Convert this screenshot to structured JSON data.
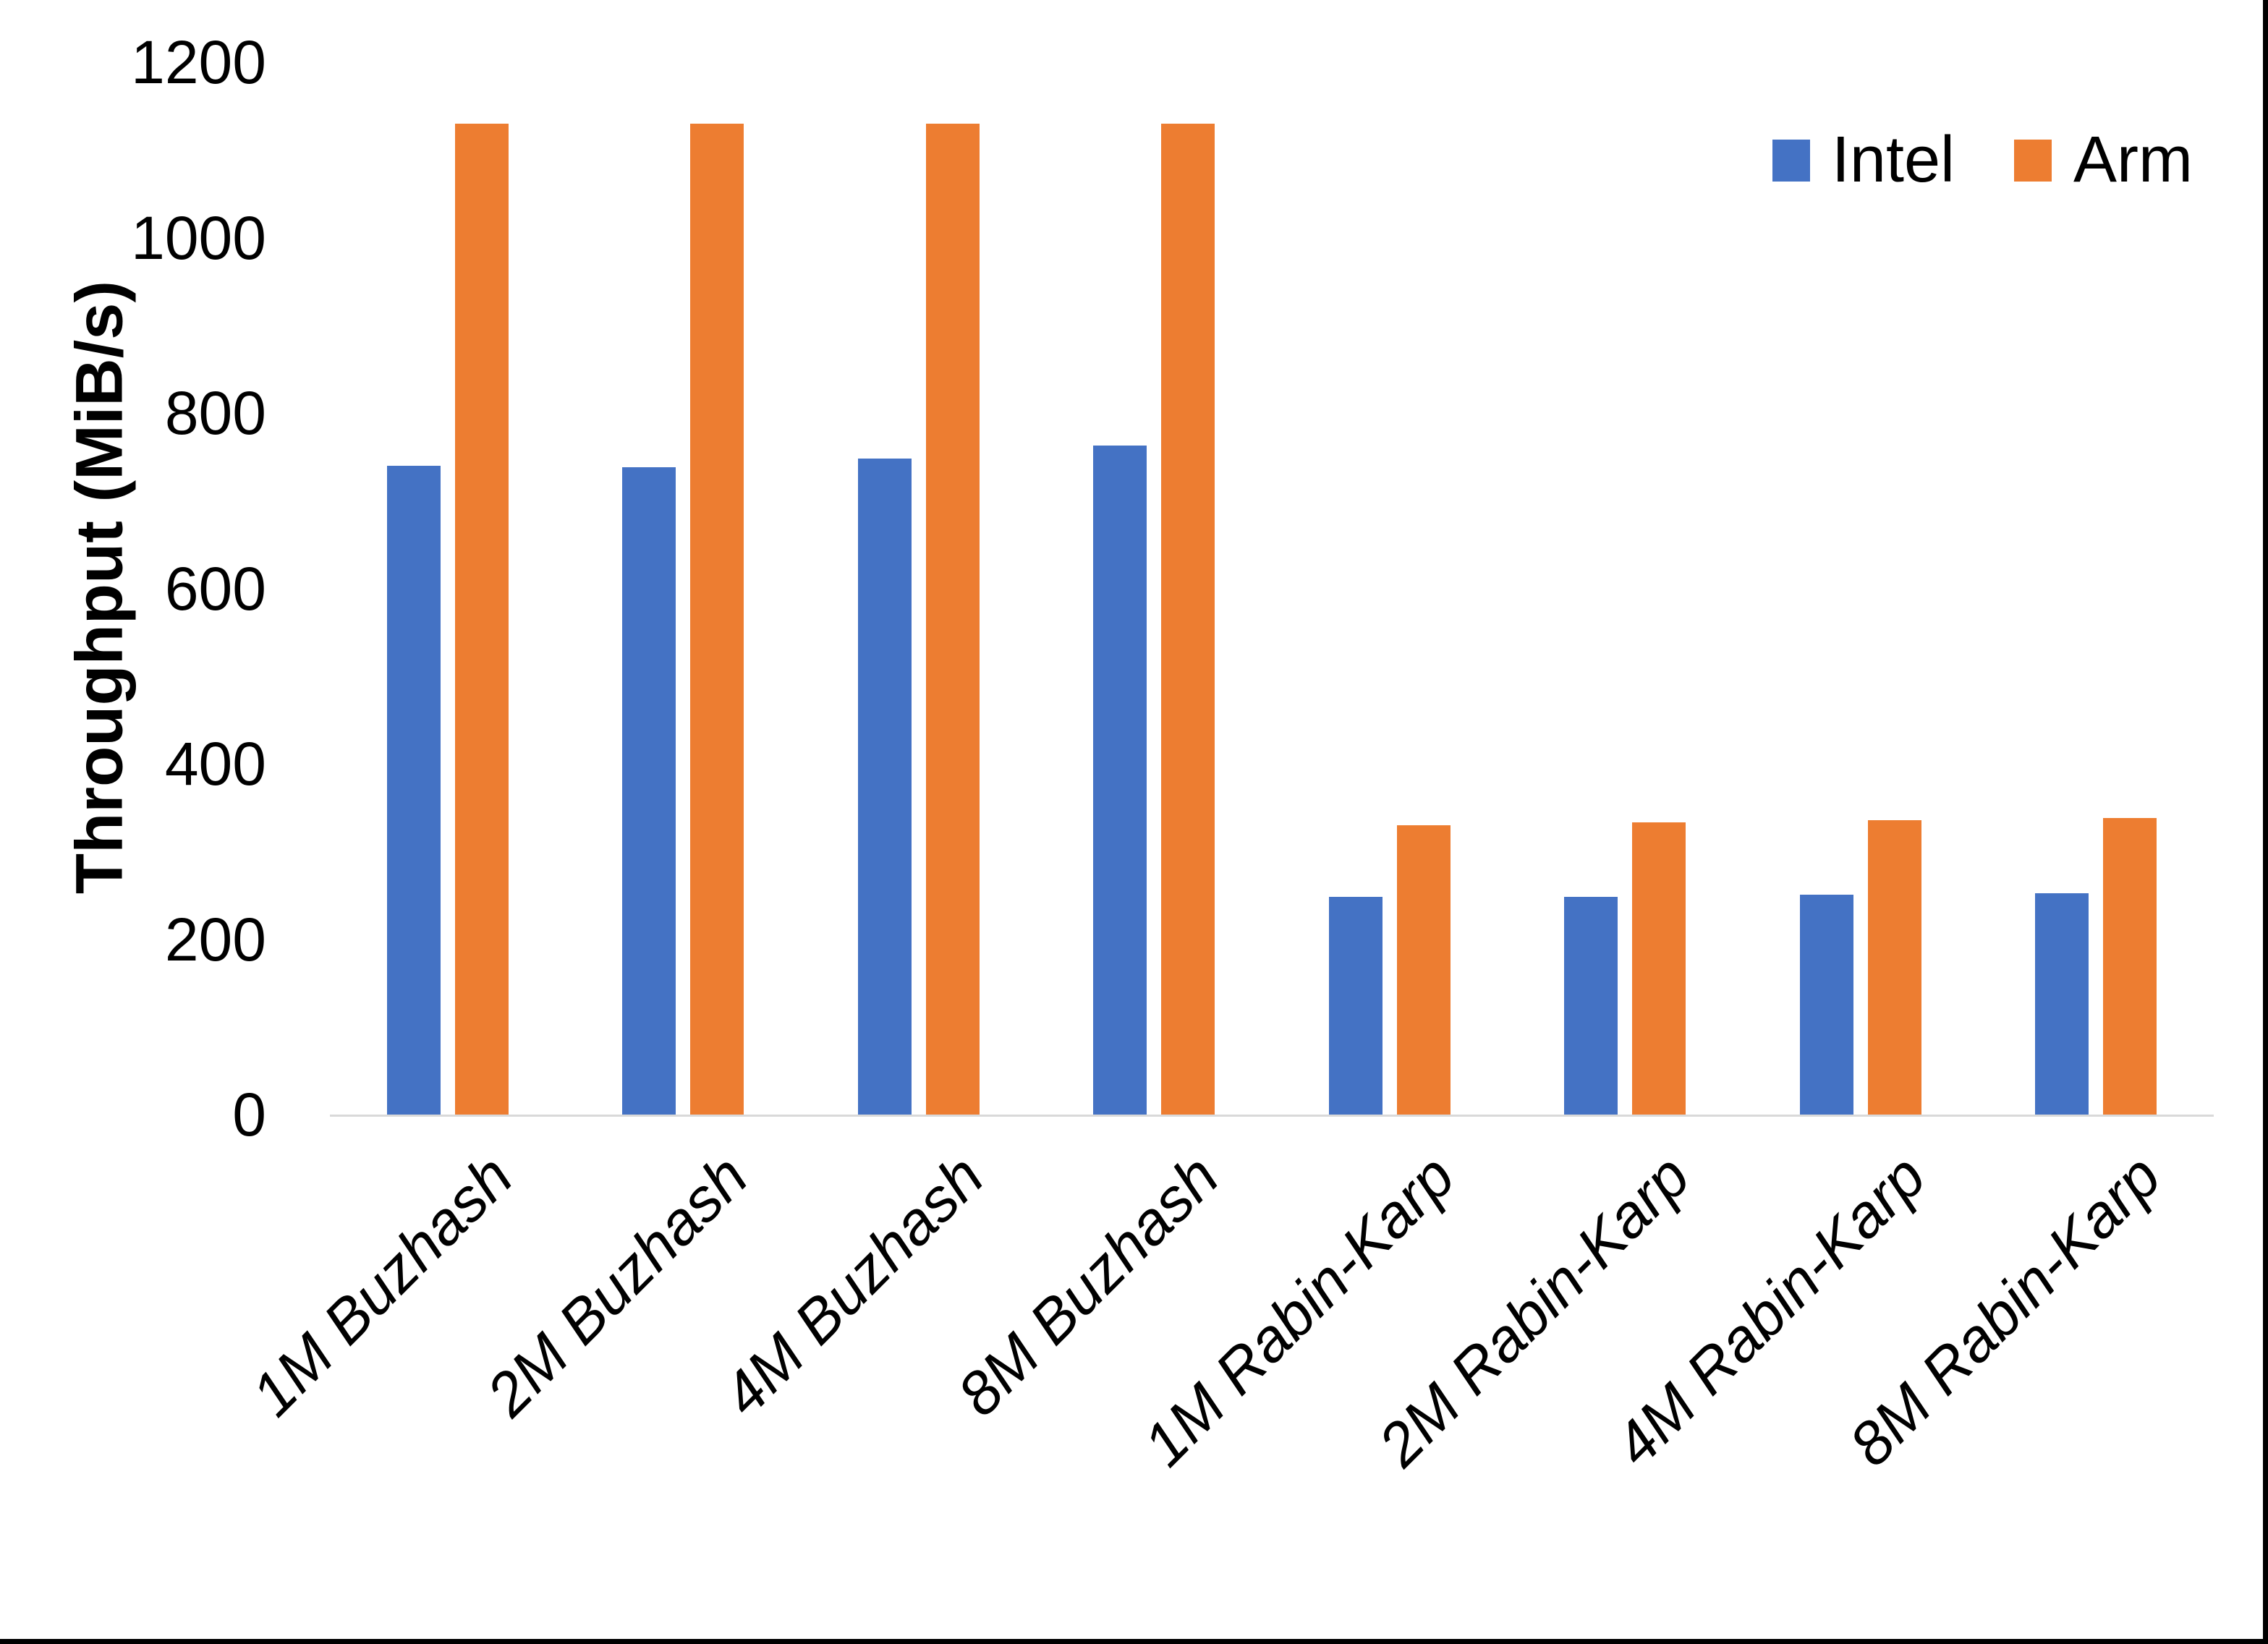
{
  "chart_data": {
    "type": "bar",
    "title": "",
    "xlabel": "",
    "ylabel": "Throughput (MiB/s)",
    "ylim": [
      0,
      1200
    ],
    "ytick_step": 200,
    "yticks": [
      0,
      200,
      400,
      600,
      800,
      1000,
      1200
    ],
    "grid": false,
    "legend_position": "top-right",
    "categories": [
      "1M Buzhash",
      "2M Buzhash",
      "4M Buzhash",
      "8M Buzhash",
      "1M Rabin-Karp",
      "2M Rabin-Karp",
      "4M Rabin-Karp",
      "8M Rabin-Karp"
    ],
    "series": [
      {
        "name": "Intel",
        "color": "#4472C4",
        "values": [
          740,
          738,
          748,
          763,
          248,
          248,
          251,
          252
        ]
      },
      {
        "name": "Arm",
        "color": "#ED7D31",
        "values": [
          1130,
          1130,
          1130,
          1130,
          330,
          333,
          336,
          338
        ]
      }
    ]
  },
  "colors": {
    "background": "#FFFFFF",
    "axis_line": "#D9D9D9",
    "text": "#000000",
    "screenshot_edge": "#000000"
  }
}
